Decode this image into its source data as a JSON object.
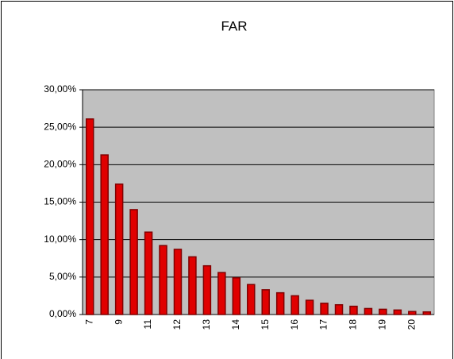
{
  "chart_data": {
    "type": "bar",
    "title": "FAR",
    "categories": [
      "7",
      null,
      "9",
      null,
      "11",
      null,
      "12",
      null,
      "13",
      null,
      "14",
      null,
      "15",
      null,
      "16",
      null,
      "17",
      null,
      "18",
      null,
      "19",
      null,
      "20",
      null
    ],
    "values": [
      26.1,
      21.3,
      17.4,
      14.0,
      11.0,
      9.2,
      8.7,
      7.7,
      6.5,
      5.6,
      4.9,
      4.0,
      3.3,
      2.9,
      2.5,
      1.9,
      1.5,
      1.3,
      1.1,
      0.8,
      0.7,
      0.6,
      0.4,
      0.35
    ],
    "color": "#e00000",
    "ylim": [
      0,
      30
    ],
    "yticks": [
      {
        "value": 0,
        "label": "0,00%"
      },
      {
        "value": 5,
        "label": "5,00%"
      },
      {
        "value": 10,
        "label": "10,00%"
      },
      {
        "value": 15,
        "label": "15,00%"
      },
      {
        "value": 20,
        "label": "20,00%"
      },
      {
        "value": 25,
        "label": "25,00%"
      },
      {
        "value": 30,
        "label": "30,00%"
      }
    ],
    "grid": true
  }
}
